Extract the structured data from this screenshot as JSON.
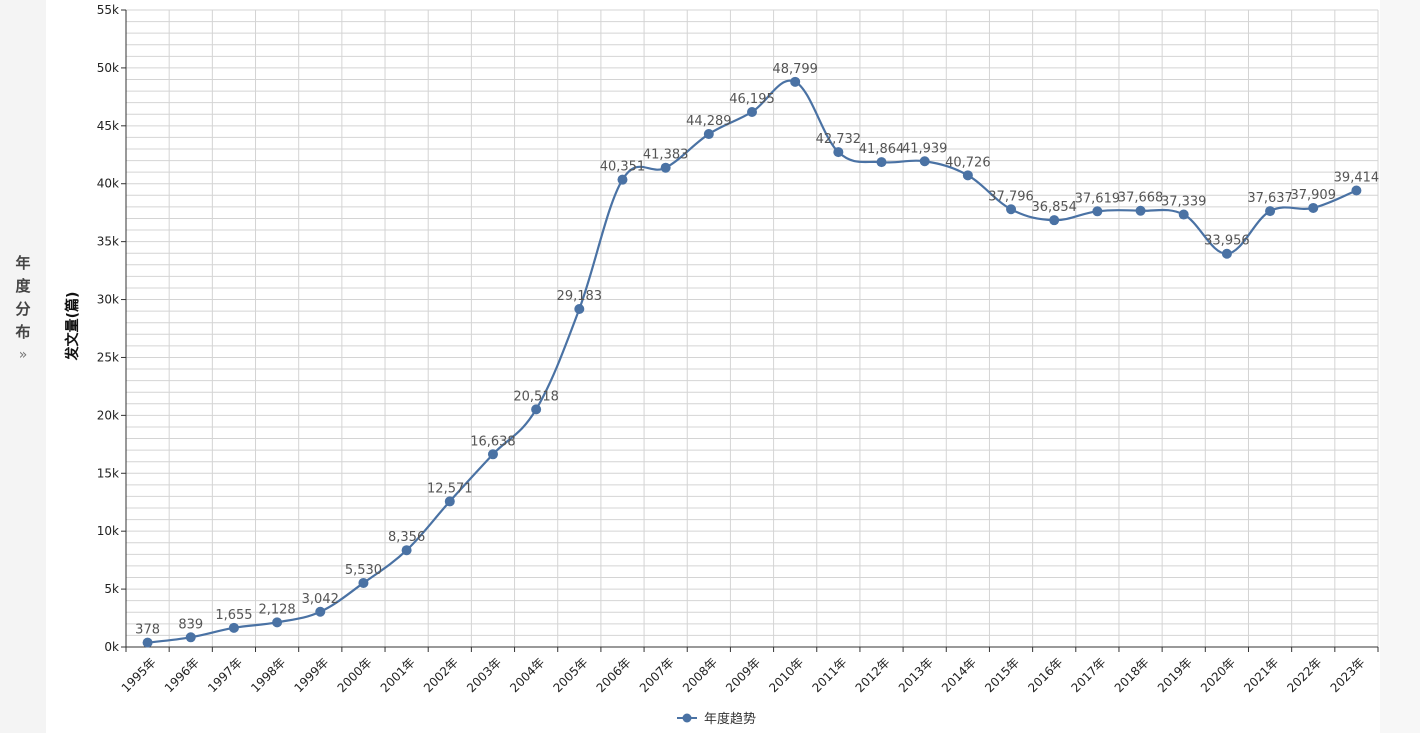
{
  "side_panel": {
    "chars": [
      "年",
      "度",
      "分",
      "布"
    ],
    "arrow": "»"
  },
  "colors": {
    "series": "#4a72a4",
    "grid": "#d4d4d4",
    "axis": "#333333"
  },
  "chart_data": {
    "type": "line",
    "title": "",
    "xlabel": "",
    "ylabel": "发文量(篇)",
    "ylim": [
      0,
      55000
    ],
    "yticks": [
      0,
      5000,
      10000,
      15000,
      20000,
      25000,
      30000,
      35000,
      40000,
      45000,
      50000,
      55000
    ],
    "ytick_labels": [
      "0k",
      "5k",
      "10k",
      "15k",
      "20k",
      "25k",
      "30k",
      "35k",
      "40k",
      "45k",
      "50k",
      "55k"
    ],
    "grid": true,
    "legend": "bottom-center",
    "categories": [
      "1995年",
      "1996年",
      "1997年",
      "1998年",
      "1999年",
      "2000年",
      "2001年",
      "2002年",
      "2003年",
      "2004年",
      "2005年",
      "2006年",
      "2007年",
      "2008年",
      "2009年",
      "2010年",
      "2011年",
      "2012年",
      "2013年",
      "2014年",
      "2015年",
      "2016年",
      "2017年",
      "2018年",
      "2019年",
      "2020年",
      "2021年",
      "2022年",
      "2023年"
    ],
    "series": [
      {
        "name": "年度趋势",
        "values": [
          378,
          839,
          1655,
          2128,
          3042,
          5530,
          8356,
          12571,
          16638,
          20518,
          29183,
          40351,
          41383,
          44289,
          46195,
          48799,
          42732,
          41864,
          41939,
          40726,
          37796,
          36854,
          37619,
          37668,
          37339,
          33956,
          37637,
          37909,
          39414
        ],
        "labels": [
          "378",
          "839",
          "1,655",
          "2,128",
          "3,042",
          "5,530",
          "8,356",
          "12,571",
          "16,638",
          "20,518",
          "29,183",
          "40,351",
          "41,383",
          "44,289",
          "46,195",
          "48,799",
          "42,732",
          "41,864",
          "41,939",
          "40,726",
          "37,796",
          "36,854",
          "37,619",
          "37,668",
          "37,339",
          "33,956",
          "37,637",
          "37,909",
          "39,414"
        ]
      }
    ]
  }
}
